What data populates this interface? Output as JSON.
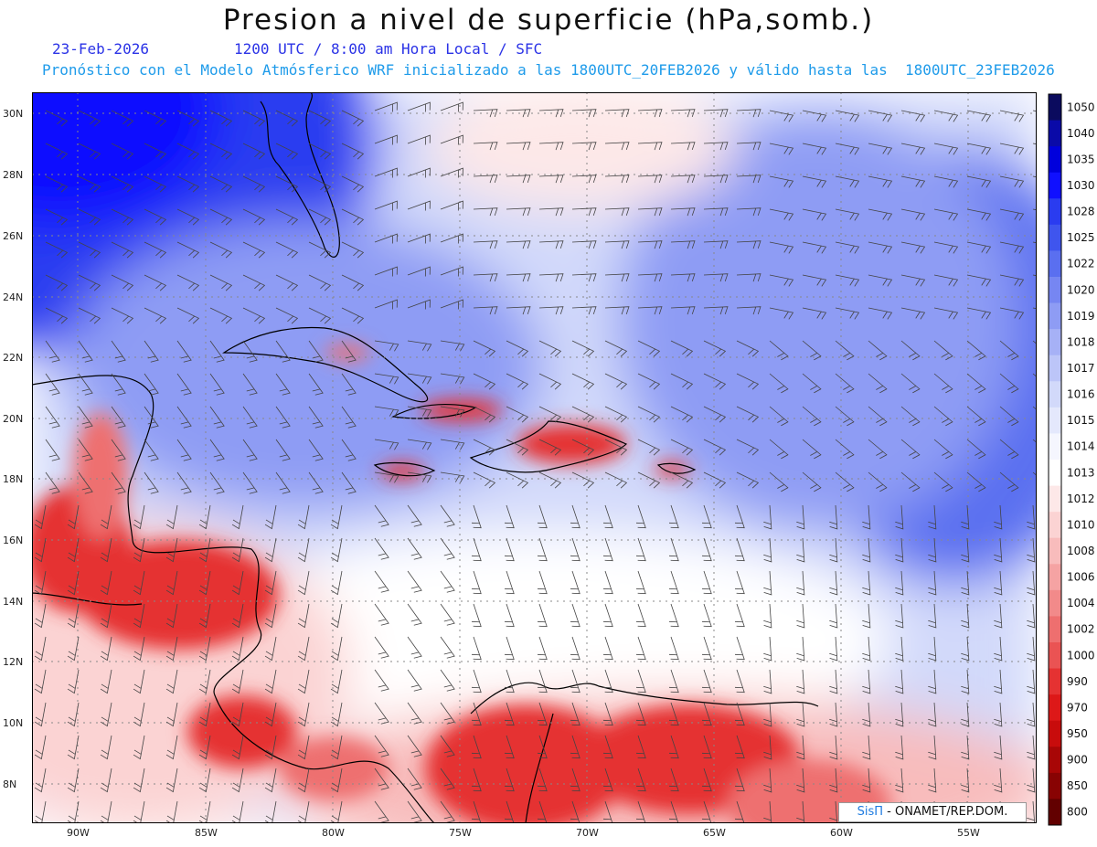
{
  "title": "Presion a nivel de superficie (hPa,somb.)",
  "header": {
    "date": "23-Feb-2026",
    "valid": "1200 UTC / 8:00 am Hora Local / SFC",
    "run": "Pronóstico con el Modelo Atmósferico WRF inicializado a las 1800UTC_20FEB2026 y válido hasta las  1800UTC_23FEB2026"
  },
  "axes": {
    "lat_labels": [
      "30N",
      "28N",
      "26N",
      "24N",
      "22N",
      "20N",
      "18N",
      "16N",
      "14N",
      "12N",
      "10N",
      "8N"
    ],
    "lon_labels": [
      "90W",
      "85W",
      "80W",
      "75W",
      "70W",
      "65W",
      "60W",
      "55W"
    ]
  },
  "colorbar": {
    "levels": [
      "1050",
      "1040",
      "1035",
      "1030",
      "1028",
      "1025",
      "1022",
      "1020",
      "1019",
      "1018",
      "1017",
      "1016",
      "1015",
      "1014",
      "1013",
      "1012",
      "1010",
      "1008",
      "1006",
      "1004",
      "1002",
      "1000",
      "990",
      "970",
      "950",
      "900",
      "850",
      "800"
    ],
    "colors": [
      "#0b0b5e",
      "#0a0aa8",
      "#0000dc",
      "#1010ff",
      "#2a3cf0",
      "#3f55ee",
      "#5a6ff0",
      "#7686f2",
      "#8e9cf4",
      "#a6b1f6",
      "#bcc5f8",
      "#d2d9fa",
      "#e4e8fc",
      "#f5f6fe",
      "#ffffff",
      "#fde8e8",
      "#fbd3d3",
      "#f8bcbc",
      "#f5a3a3",
      "#f28a8a",
      "#ee6f6f",
      "#ea5353",
      "#e53232",
      "#dd1818",
      "#c80c0c",
      "#a80606",
      "#880303",
      "#620000"
    ]
  },
  "credit": {
    "logo": "SisΠ",
    "text": "- ONAMET/REP.DOM."
  },
  "map_colors": {
    "high": "#1010ff",
    "mid": "#7686f2",
    "light": "#d2d9fa",
    "neutral": "#ffffff",
    "lowlight": "#fbd3d3",
    "low": "#e53232",
    "lowdeep": "#a80606",
    "land_outline": "#000000",
    "barb": "#444444"
  }
}
